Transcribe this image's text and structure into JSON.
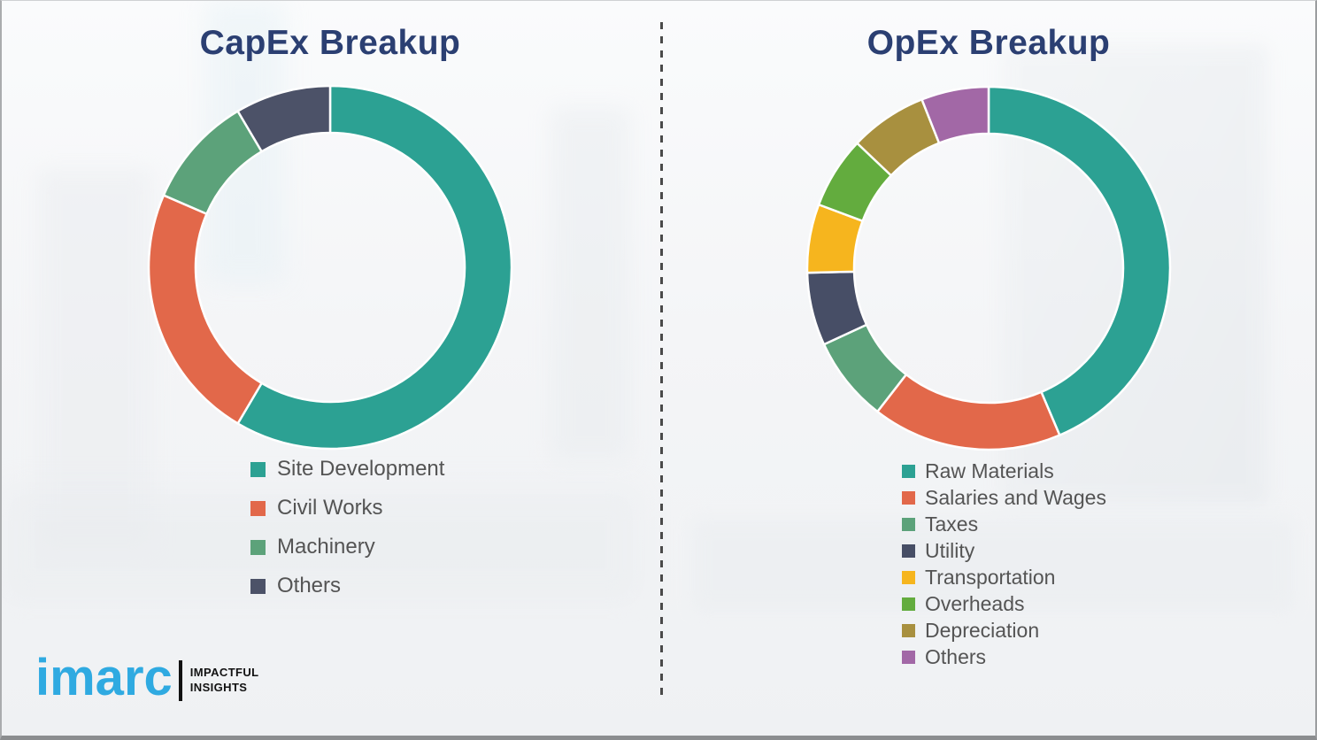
{
  "chart_data": [
    {
      "type": "pie",
      "subtype": "donut",
      "title": "CapEx Breakup",
      "categories": [
        "Site Development",
        "Civil Works",
        "Machinery",
        "Others"
      ],
      "values": [
        58.5,
        23.0,
        10.0,
        8.5
      ],
      "colors": [
        "#2CA193",
        "#E2684A",
        "#5CA27A",
        "#4C5268"
      ],
      "start_angle_deg": 0,
      "direction": "clockwise",
      "legend_position": "bottom-left",
      "data_labels": false
    },
    {
      "type": "pie",
      "subtype": "donut",
      "title": "OpEx Breakup",
      "categories": [
        "Raw Materials",
        "Salaries and Wages",
        "Taxes",
        "Utility",
        "Transportation",
        "Overheads",
        "Depreciation",
        "Others"
      ],
      "values": [
        43.6,
        16.9,
        7.6,
        6.5,
        6.1,
        6.4,
        6.9,
        6.0
      ],
      "colors": [
        "#2CA193",
        "#E2684A",
        "#5CA27A",
        "#474E66",
        "#F6B51E",
        "#63AC3E",
        "#A8903F",
        "#A268A6"
      ],
      "start_angle_deg": 0,
      "direction": "clockwise",
      "legend_position": "bottom-left",
      "data_labels": false
    }
  ],
  "branding": {
    "logo_text": "imarc",
    "tagline_line1": "IMPACTFUL",
    "tagline_line2": "INSIGHTS",
    "logo_color": "#2FAAE1",
    "tagline_color": "#121212"
  },
  "style": {
    "title_color": "#2B3F72",
    "legend_text_color": "#545454",
    "divider_color": "#4A4A4A",
    "segment_gap_color": "#FFFFFF"
  }
}
